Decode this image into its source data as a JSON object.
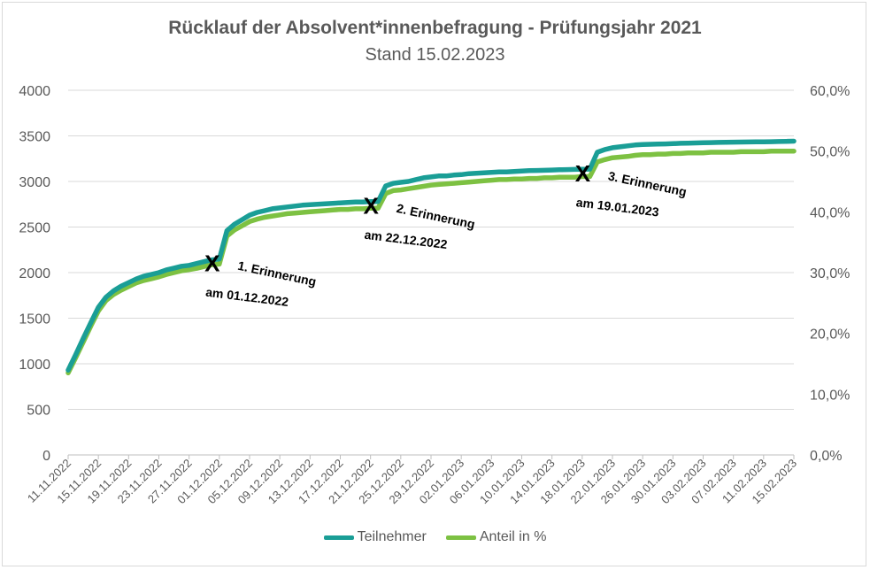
{
  "chart_data": {
    "type": "line",
    "title": "Rücklauf der Absolvent*innenbefragung - Prüfungsjahr 2021",
    "subtitle": "Stand 15.02.2023",
    "y_left": {
      "lim": [
        0,
        4000
      ],
      "ticks": [
        "0",
        "500",
        "1000",
        "1500",
        "2000",
        "2500",
        "3000",
        "3500",
        "4000"
      ]
    },
    "y_right": {
      "lim": [
        0,
        0.6
      ],
      "ticks": [
        "0,0%",
        "10,0%",
        "20,0%",
        "30,0%",
        "40,0%",
        "50,0%",
        "60,0%"
      ]
    },
    "x_ticks": [
      "11.11.2022",
      "15.11.2022",
      "19.11.2022",
      "23.11.2022",
      "27.11.2022",
      "01.12.2022",
      "05.12.2022",
      "09.12.2022",
      "13.12.2022",
      "17.12.2022",
      "21.12.2022",
      "25.12.2022",
      "29.12.2022",
      "02.01.2023",
      "06.01.2023",
      "10.01.2023",
      "14.01.2023",
      "18.01.2023",
      "22.01.2023",
      "26.01.2023",
      "30.01.2023",
      "03.02.2023",
      "07.02.2023",
      "11.02.2023",
      "15.02.2023"
    ],
    "grid": true,
    "legend_position": "bottom",
    "series": [
      {
        "name": "Teilnehmer",
        "axis": "left",
        "color": "#1a9e96",
        "points": [
          [
            "11.11.2022",
            930
          ],
          [
            "12.11.2022",
            1100
          ],
          [
            "13.11.2022",
            1280
          ],
          [
            "14.11.2022",
            1450
          ],
          [
            "15.11.2022",
            1620
          ],
          [
            "16.11.2022",
            1730
          ],
          [
            "17.11.2022",
            1800
          ],
          [
            "18.11.2022",
            1850
          ],
          [
            "19.11.2022",
            1890
          ],
          [
            "20.11.2022",
            1930
          ],
          [
            "21.11.2022",
            1960
          ],
          [
            "22.11.2022",
            1980
          ],
          [
            "23.11.2022",
            2000
          ],
          [
            "24.11.2022",
            2030
          ],
          [
            "25.11.2022",
            2050
          ],
          [
            "26.11.2022",
            2070
          ],
          [
            "27.11.2022",
            2080
          ],
          [
            "28.11.2022",
            2100
          ],
          [
            "29.11.2022",
            2120
          ],
          [
            "30.11.2022",
            2140
          ],
          [
            "01.12.2022",
            2150
          ],
          [
            "02.12.2022",
            2460
          ],
          [
            "03.12.2022",
            2530
          ],
          [
            "04.12.2022",
            2580
          ],
          [
            "05.12.2022",
            2630
          ],
          [
            "06.12.2022",
            2660
          ],
          [
            "07.12.2022",
            2680
          ],
          [
            "08.12.2022",
            2700
          ],
          [
            "09.12.2022",
            2710
          ],
          [
            "10.12.2022",
            2720
          ],
          [
            "11.12.2022",
            2730
          ],
          [
            "12.12.2022",
            2740
          ],
          [
            "13.12.2022",
            2745
          ],
          [
            "14.12.2022",
            2750
          ],
          [
            "15.12.2022",
            2755
          ],
          [
            "16.12.2022",
            2760
          ],
          [
            "17.12.2022",
            2765
          ],
          [
            "18.12.2022",
            2770
          ],
          [
            "19.12.2022",
            2775
          ],
          [
            "20.12.2022",
            2775
          ],
          [
            "21.12.2022",
            2780
          ],
          [
            "22.12.2022",
            2780
          ],
          [
            "23.12.2022",
            2950
          ],
          [
            "24.12.2022",
            2980
          ],
          [
            "25.12.2022",
            2990
          ],
          [
            "26.12.2022",
            3000
          ],
          [
            "27.12.2022",
            3020
          ],
          [
            "28.12.2022",
            3040
          ],
          [
            "29.12.2022",
            3050
          ],
          [
            "30.12.2022",
            3060
          ],
          [
            "31.12.2022",
            3060
          ],
          [
            "01.01.2023",
            3070
          ],
          [
            "02.01.2023",
            3075
          ],
          [
            "03.01.2023",
            3085
          ],
          [
            "04.01.2023",
            3090
          ],
          [
            "05.01.2023",
            3095
          ],
          [
            "06.01.2023",
            3100
          ],
          [
            "07.01.2023",
            3105
          ],
          [
            "08.01.2023",
            3105
          ],
          [
            "09.01.2023",
            3110
          ],
          [
            "10.01.2023",
            3115
          ],
          [
            "11.01.2023",
            3118
          ],
          [
            "12.01.2023",
            3120
          ],
          [
            "13.01.2023",
            3122
          ],
          [
            "14.01.2023",
            3125
          ],
          [
            "15.01.2023",
            3128
          ],
          [
            "16.01.2023",
            3130
          ],
          [
            "17.01.2023",
            3132
          ],
          [
            "18.01.2023",
            3134
          ],
          [
            "19.01.2023",
            3135
          ],
          [
            "20.01.2023",
            3320
          ],
          [
            "21.01.2023",
            3350
          ],
          [
            "22.01.2023",
            3370
          ],
          [
            "23.01.2023",
            3380
          ],
          [
            "24.01.2023",
            3390
          ],
          [
            "25.01.2023",
            3400
          ],
          [
            "26.01.2023",
            3405
          ],
          [
            "27.01.2023",
            3408
          ],
          [
            "28.01.2023",
            3410
          ],
          [
            "29.01.2023",
            3412
          ],
          [
            "30.01.2023",
            3415
          ],
          [
            "31.01.2023",
            3418
          ],
          [
            "01.02.2023",
            3420
          ],
          [
            "02.02.2023",
            3422
          ],
          [
            "03.02.2023",
            3425
          ],
          [
            "04.02.2023",
            3426
          ],
          [
            "05.02.2023",
            3428
          ],
          [
            "06.02.2023",
            3430
          ],
          [
            "07.02.2023",
            3431
          ],
          [
            "08.02.2023",
            3432
          ],
          [
            "09.02.2023",
            3433
          ],
          [
            "10.02.2023",
            3434
          ],
          [
            "11.02.2023",
            3435
          ],
          [
            "12.02.2023",
            3436
          ],
          [
            "13.02.2023",
            3438
          ],
          [
            "14.02.2023",
            3440
          ],
          [
            "15.02.2023",
            3442
          ]
        ]
      },
      {
        "name": "Anteil in %",
        "axis": "right",
        "color": "#7dc142",
        "points": [
          [
            "11.11.2022",
            0.135
          ],
          [
            "12.11.2022",
            0.16
          ],
          [
            "13.11.2022",
            0.186
          ],
          [
            "14.11.2022",
            0.212
          ],
          [
            "15.11.2022",
            0.237
          ],
          [
            "16.11.2022",
            0.254
          ],
          [
            "17.11.2022",
            0.264
          ],
          [
            "18.11.2022",
            0.271
          ],
          [
            "19.11.2022",
            0.277
          ],
          [
            "20.11.2022",
            0.283
          ],
          [
            "21.11.2022",
            0.287
          ],
          [
            "22.11.2022",
            0.29
          ],
          [
            "23.11.2022",
            0.293
          ],
          [
            "24.11.2022",
            0.297
          ],
          [
            "25.11.2022",
            0.3
          ],
          [
            "26.11.2022",
            0.303
          ],
          [
            "27.11.2022",
            0.305
          ],
          [
            "28.11.2022",
            0.307
          ],
          [
            "29.11.2022",
            0.31
          ],
          [
            "30.11.2022",
            0.313
          ],
          [
            "01.12.2022",
            0.314
          ],
          [
            "02.12.2022",
            0.36
          ],
          [
            "03.12.2022",
            0.37
          ],
          [
            "04.12.2022",
            0.377
          ],
          [
            "05.12.2022",
            0.384
          ],
          [
            "06.12.2022",
            0.388
          ],
          [
            "07.12.2022",
            0.391
          ],
          [
            "08.12.2022",
            0.393
          ],
          [
            "09.12.2022",
            0.395
          ],
          [
            "10.12.2022",
            0.397
          ],
          [
            "11.12.2022",
            0.398
          ],
          [
            "12.12.2022",
            0.399
          ],
          [
            "13.12.2022",
            0.4
          ],
          [
            "14.12.2022",
            0.401
          ],
          [
            "15.12.2022",
            0.402
          ],
          [
            "16.12.2022",
            0.403
          ],
          [
            "17.12.2022",
            0.404
          ],
          [
            "18.12.2022",
            0.404
          ],
          [
            "19.12.2022",
            0.405
          ],
          [
            "20.12.2022",
            0.405
          ],
          [
            "21.12.2022",
            0.406
          ],
          [
            "22.12.2022",
            0.406
          ],
          [
            "23.12.2022",
            0.43
          ],
          [
            "24.12.2022",
            0.435
          ],
          [
            "25.12.2022",
            0.436
          ],
          [
            "26.12.2022",
            0.438
          ],
          [
            "27.12.2022",
            0.44
          ],
          [
            "28.12.2022",
            0.442
          ],
          [
            "29.12.2022",
            0.444
          ],
          [
            "30.12.2022",
            0.445
          ],
          [
            "31.12.2022",
            0.446
          ],
          [
            "01.01.2023",
            0.447
          ],
          [
            "02.01.2023",
            0.448
          ],
          [
            "03.01.2023",
            0.449
          ],
          [
            "04.01.2023",
            0.45
          ],
          [
            "05.01.2023",
            0.451
          ],
          [
            "06.01.2023",
            0.452
          ],
          [
            "07.01.2023",
            0.453
          ],
          [
            "08.01.2023",
            0.453
          ],
          [
            "09.01.2023",
            0.454
          ],
          [
            "10.01.2023",
            0.454
          ],
          [
            "11.01.2023",
            0.455
          ],
          [
            "12.01.2023",
            0.455
          ],
          [
            "13.01.2023",
            0.456
          ],
          [
            "14.01.2023",
            0.456
          ],
          [
            "15.01.2023",
            0.457
          ],
          [
            "16.01.2023",
            0.457
          ],
          [
            "17.01.2023",
            0.457
          ],
          [
            "18.01.2023",
            0.458
          ],
          [
            "19.01.2023",
            0.458
          ],
          [
            "20.01.2023",
            0.482
          ],
          [
            "21.01.2023",
            0.486
          ],
          [
            "22.01.2023",
            0.489
          ],
          [
            "23.01.2023",
            0.49
          ],
          [
            "24.01.2023",
            0.491
          ],
          [
            "25.01.2023",
            0.493
          ],
          [
            "26.01.2023",
            0.494
          ],
          [
            "27.01.2023",
            0.494
          ],
          [
            "28.01.2023",
            0.495
          ],
          [
            "29.01.2023",
            0.495
          ],
          [
            "30.01.2023",
            0.496
          ],
          [
            "31.01.2023",
            0.496
          ],
          [
            "01.02.2023",
            0.497
          ],
          [
            "02.02.2023",
            0.497
          ],
          [
            "03.02.2023",
            0.497
          ],
          [
            "04.02.2023",
            0.498
          ],
          [
            "05.02.2023",
            0.498
          ],
          [
            "06.02.2023",
            0.498
          ],
          [
            "07.02.2023",
            0.498
          ],
          [
            "08.02.2023",
            0.499
          ],
          [
            "09.02.2023",
            0.499
          ],
          [
            "10.02.2023",
            0.499
          ],
          [
            "11.02.2023",
            0.499
          ],
          [
            "12.02.2023",
            0.5
          ],
          [
            "13.02.2023",
            0.5
          ],
          [
            "14.02.2023",
            0.5
          ],
          [
            "15.02.2023",
            0.5
          ]
        ]
      }
    ],
    "annotations": [
      {
        "date": "01.12.2022",
        "marker": "X",
        "line1": "1. Erinnerung",
        "line2": "am 01.12.2022"
      },
      {
        "date": "22.12.2022",
        "marker": "X",
        "line1": "2. Erinnerung",
        "line2": "am 22.12.2022"
      },
      {
        "date": "19.01.2023",
        "marker": "X",
        "line1": ". Erinnerung",
        "line1_prefix": "3",
        "line2": "am 19.01.2023"
      }
    ]
  }
}
